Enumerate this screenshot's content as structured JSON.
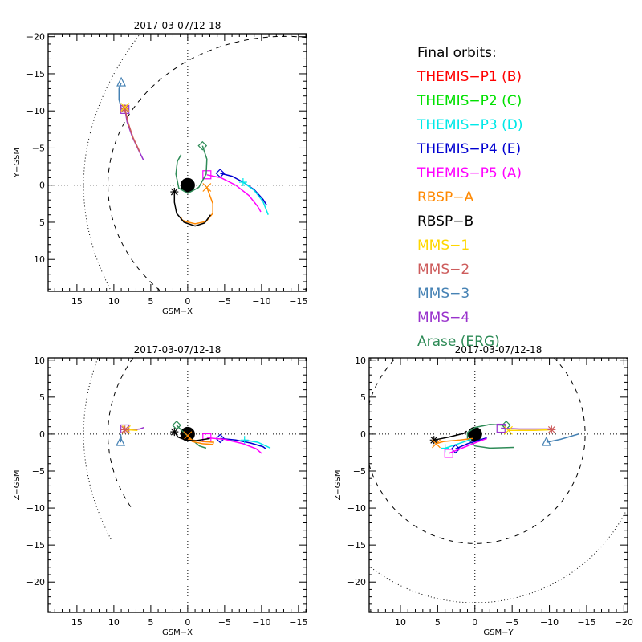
{
  "legend": {
    "title": "Final orbits:",
    "items": [
      {
        "label": "THEMIS-P1 (B)",
        "color": "#ff0000"
      },
      {
        "label": "THEMIS-P2 (C)",
        "color": "#00e000"
      },
      {
        "label": "THEMIS-P3 (D)",
        "color": "#00e8e8"
      },
      {
        "label": "THEMIS-P4 (E)",
        "color": "#0000d0"
      },
      {
        "label": "THEMIS-P5 (A)",
        "color": "#ff00ff"
      },
      {
        "label": "RBSP-A",
        "color": "#ff8800"
      },
      {
        "label": "RBSP-B",
        "color": "#000000"
      },
      {
        "label": "MMS-1",
        "color": "#ffd700"
      },
      {
        "label": "MMS-2",
        "color": "#cd5c5c"
      },
      {
        "label": "MMS-3",
        "color": "#4682b4"
      },
      {
        "label": "MMS-4",
        "color": "#9932cc"
      },
      {
        "label": "Arase (ERG)",
        "color": "#2e8b57"
      }
    ]
  },
  "chart_data": [
    {
      "type": "line",
      "title": "2017-03-07/12-18",
      "xlabel": "GSM-X",
      "ylabel": "Y-GSM",
      "xlim": [
        18.9,
        -16.1
      ],
      "ylim": [
        14.3,
        -20.4
      ],
      "xticks": [
        15,
        10,
        5,
        0,
        -5,
        -10,
        -15
      ],
      "yticks": [
        -20,
        -15,
        -10,
        -5,
        0,
        5,
        10
      ],
      "grid": "dotted zero lines",
      "series": [
        {
          "name": "THEMIS-P4 (E)",
          "color": "#0000d0",
          "marker": "diamond",
          "points": [
            [
              -4.4,
              -1.6
            ],
            [
              -6,
              -1.2
            ],
            [
              -7.5,
              -0.4
            ],
            [
              -9,
              0.6
            ],
            [
              -10.2,
              1.9
            ],
            [
              -10.7,
              2.7
            ]
          ]
        },
        {
          "name": "THEMIS-P3 (D)",
          "color": "#00e8e8",
          "marker": "plus",
          "points": [
            [
              -7.5,
              -0.4
            ],
            [
              -9,
              0.7
            ],
            [
              -10.2,
              2.2
            ],
            [
              -10.9,
              4.0
            ]
          ]
        },
        {
          "name": "THEMIS-P5 (A)",
          "color": "#ff00ff",
          "marker": "square",
          "points": [
            [
              -2.6,
              -1.4
            ],
            [
              -4.5,
              -1.0
            ],
            [
              -6.5,
              0
            ],
            [
              -8.3,
              1.4
            ],
            [
              -9.5,
              2.9
            ],
            [
              -9.9,
              3.6
            ]
          ]
        },
        {
          "name": "Arase (ERG)",
          "color": "#2e8b57",
          "marker": "diamond",
          "points": [
            [
              -2.0,
              -5.3
            ],
            [
              -2.6,
              -3.5
            ],
            [
              -2.5,
              -1.5
            ],
            [
              -1.5,
              0.3
            ],
            [
              0,
              1.1
            ],
            [
              1.2,
              0.4
            ],
            [
              1.6,
              -1.5
            ],
            [
              1.4,
              -3.2
            ],
            [
              0.9,
              -4.1
            ]
          ]
        },
        {
          "name": "RBSP-A",
          "color": "#ff8800",
          "marker": "x",
          "points": [
            [
              -2.6,
              0.3
            ],
            [
              -3.4,
              2.5
            ],
            [
              -3.4,
              3.8
            ],
            [
              -2.5,
              4.9
            ],
            [
              -1.0,
              5.2
            ],
            [
              0.3,
              4.9
            ],
            [
              0.9,
              4.6
            ],
            [
              0.8,
              4.4
            ]
          ]
        },
        {
          "name": "RBSP-B",
          "color": "#000000",
          "marker": "asterisk",
          "points": [
            [
              1.8,
              0.9
            ],
            [
              1.8,
              2.3
            ],
            [
              1.5,
              3.8
            ],
            [
              0.5,
              5.0
            ],
            [
              -1.0,
              5.5
            ],
            [
              -2.3,
              5.1
            ],
            [
              -3.1,
              4.0
            ]
          ]
        },
        {
          "name": "MMS-3",
          "color": "#4682b4",
          "marker": "triangle",
          "points": [
            [
              9.0,
              -13.8
            ],
            [
              9.3,
              -13.0
            ],
            [
              9.3,
              -11.5
            ],
            [
              9.0,
              -10.4
            ],
            [
              8.7,
              -10.0
            ]
          ]
        },
        {
          "name": "MMS-4",
          "color": "#9932cc",
          "marker": "square",
          "points": [
            [
              8.5,
              -10.2
            ],
            [
              8.2,
              -8.5
            ],
            [
              7.5,
              -6.5
            ],
            [
              6.6,
              -4.6
            ],
            [
              6.0,
              -3.4
            ]
          ]
        },
        {
          "name": "MMS-2",
          "color": "#cd5c5c",
          "marker": "asterisk",
          "points": [
            [
              8.5,
              -10.3
            ],
            [
              8.1,
              -8.5
            ],
            [
              7.4,
              -6.4
            ],
            [
              6.5,
              -4.5
            ]
          ]
        },
        {
          "name": "MMS-1",
          "color": "#ffd700",
          "marker": "x",
          "points": [
            [
              8.5,
              -10.5
            ]
          ]
        }
      ]
    },
    {
      "type": "line",
      "title": "2017-03-07/12-18",
      "xlabel": "GSM-X",
      "ylabel": "Z-GSM",
      "xlim": [
        18.9,
        -16.1
      ],
      "ylim": [
        -24.1,
        10.3
      ],
      "xticks": [
        15,
        10,
        5,
        0,
        -5,
        -10,
        -15
      ],
      "yticks": [
        10,
        5,
        0,
        -5,
        -10,
        -15,
        -20
      ],
      "grid": "dotted zero lines",
      "series": [
        {
          "name": "THEMIS-P4 (E)",
          "color": "#0000d0",
          "marker": "diamond",
          "points": [
            [
              -4.4,
              -0.6
            ],
            [
              -6.5,
              -0.8
            ],
            [
              -8.5,
              -1.2
            ],
            [
              -10.2,
              -1.7
            ],
            [
              -10.6,
              -2.0
            ]
          ]
        },
        {
          "name": "THEMIS-P3 (D)",
          "color": "#00e8e8",
          "marker": "plus",
          "points": [
            [
              -7.7,
              -0.8
            ],
            [
              -9.5,
              -1.1
            ],
            [
              -10.6,
              -1.6
            ],
            [
              -11.2,
              -1.9
            ]
          ]
        },
        {
          "name": "THEMIS-P5 (A)",
          "color": "#ff00ff",
          "marker": "square",
          "points": [
            [
              -2.6,
              -0.5
            ],
            [
              -5,
              -0.7
            ],
            [
              -7.5,
              -1.3
            ],
            [
              -9.3,
              -2.0
            ],
            [
              -10.0,
              -2.6
            ]
          ]
        },
        {
          "name": "Arase (ERG)",
          "color": "#2e8b57",
          "marker": "diamond",
          "points": [
            [
              1.5,
              1.2
            ],
            [
              0.5,
              0.2
            ],
            [
              -0.6,
              -0.8
            ],
            [
              -1.6,
              -1.6
            ],
            [
              -2.5,
              -1.9
            ]
          ]
        },
        {
          "name": "RBSP-A",
          "color": "#ff8800",
          "marker": "x",
          "points": [
            [
              0,
              -0.2
            ],
            [
              -0.6,
              -1.0
            ],
            [
              -2,
              -1.3
            ],
            [
              -3.4,
              -1.4
            ],
            [
              -3.5,
              -1.1
            ],
            [
              -2.0,
              -1.0
            ],
            [
              0,
              -0.7
            ]
          ]
        },
        {
          "name": "RBSP-B",
          "color": "#000000",
          "marker": "asterisk",
          "points": [
            [
              1.8,
              0.3
            ],
            [
              1.3,
              -0.4
            ],
            [
              0.3,
              -0.8
            ],
            [
              -1,
              -0.9
            ],
            [
              -2.3,
              -0.7
            ],
            [
              -3.0,
              -0.6
            ]
          ]
        },
        {
          "name": "MMS-3",
          "color": "#4682b4",
          "marker": "triangle",
          "points": [
            [
              9.1,
              -1.1
            ],
            [
              9.0,
              -0.5
            ],
            [
              9.1,
              0
            ]
          ]
        },
        {
          "name": "MMS-4",
          "color": "#9932cc",
          "marker": "square",
          "points": [
            [
              8.5,
              0.7
            ],
            [
              7.5,
              0.6
            ],
            [
              6.5,
              0.7
            ],
            [
              5.9,
              0.9
            ]
          ]
        },
        {
          "name": "MMS-1",
          "color": "#ffd700",
          "marker": "x",
          "points": [
            [
              8.3,
              0.6
            ],
            [
              6.8,
              0.5
            ]
          ]
        },
        {
          "name": "MMS-2",
          "color": "#cd5c5c",
          "marker": "asterisk",
          "points": [
            [
              8.5,
              0.6
            ]
          ]
        }
      ]
    },
    {
      "type": "line",
      "title": "2017-03-07/12-18",
      "xlabel": "GSM-Y",
      "ylabel": "Z-GSM",
      "xlim": [
        14.2,
        -20.5
      ],
      "ylim": [
        -24.1,
        10.3
      ],
      "xticks": [
        10,
        5,
        0,
        -5,
        -10,
        -15,
        -20
      ],
      "yticks": [
        10,
        5,
        0,
        -5,
        -10,
        -15,
        -20
      ],
      "grid": "dotted zero lines",
      "series": [
        {
          "name": "Arase (ERG)",
          "color": "#2e8b57",
          "marker": "diamond",
          "points": [
            [
              -4.2,
              1.2
            ],
            [
              -2,
              1.3
            ],
            [
              0,
              0.9
            ],
            [
              1,
              0.2
            ],
            [
              1.0,
              -0.6
            ],
            [
              0,
              -1.6
            ],
            [
              -2,
              -1.9
            ],
            [
              -5.2,
              -1.8
            ]
          ]
        },
        {
          "name": "MMS-4",
          "color": "#9932cc",
          "marker": "square",
          "points": [
            [
              -3.5,
              0.8
            ],
            [
              -6,
              0.7
            ],
            [
              -8,
              0.7
            ],
            [
              -10,
              0.7
            ]
          ]
        },
        {
          "name": "MMS-1",
          "color": "#ffd700",
          "marker": "x",
          "points": [
            [
              -4.5,
              0.5
            ],
            [
              -8,
              0.5
            ],
            [
              -10.5,
              0.6
            ]
          ]
        },
        {
          "name": "MMS-2",
          "color": "#cd5c5c",
          "marker": "asterisk",
          "points": [
            [
              -10.3,
              0.6
            ]
          ]
        },
        {
          "name": "MMS-3",
          "color": "#4682b4",
          "marker": "triangle",
          "points": [
            [
              -9.6,
              -1.1
            ],
            [
              -11.5,
              -0.7
            ],
            [
              -13.9,
              0
            ]
          ]
        },
        {
          "name": "RBSP-B",
          "color": "#000000",
          "marker": "asterisk",
          "points": [
            [
              5.5,
              -0.8
            ],
            [
              3.5,
              -0.4
            ],
            [
              1.5,
              0.1
            ],
            [
              1.1,
              0.4
            ]
          ]
        },
        {
          "name": "RBSP-A",
          "color": "#ff8800",
          "marker": "x",
          "points": [
            [
              5.2,
              -1.3
            ],
            [
              4.6,
              -1.1
            ],
            [
              4.2,
              -1.0
            ],
            [
              2,
              -0.8
            ],
            [
              0.3,
              -0.6
            ]
          ]
        },
        {
          "name": "THEMIS-P3 (D)",
          "color": "#00e8e8",
          "marker": "plus",
          "points": [
            [
              4.0,
              -1.9
            ],
            [
              2.5,
              -1.4
            ],
            [
              0.5,
              -0.7
            ]
          ]
        },
        {
          "name": "THEMIS-P4 (E)",
          "color": "#0000d0",
          "marker": "diamond",
          "points": [
            [
              2.6,
              -2.0
            ],
            [
              1,
              -1.3
            ],
            [
              -1.6,
              -0.5
            ]
          ]
        },
        {
          "name": "THEMIS-P5 (A)",
          "color": "#ff00ff",
          "marker": "square",
          "points": [
            [
              3.5,
              -2.6
            ],
            [
              1.5,
              -1.8
            ],
            [
              -0.5,
              -1.0
            ],
            [
              -1.6,
              -0.6
            ]
          ]
        }
      ]
    }
  ]
}
